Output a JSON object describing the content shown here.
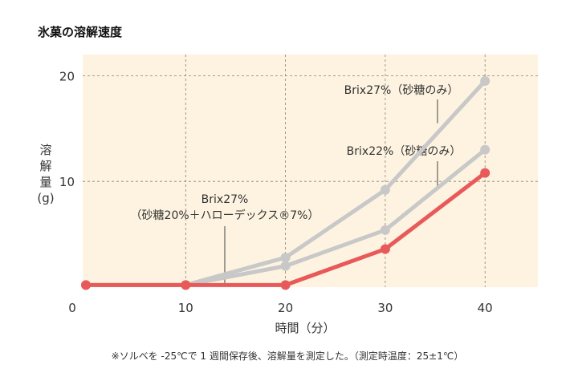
{
  "chart_data": {
    "type": "line",
    "title": "氷菓の溶解速度",
    "xlabel": "時間（分）",
    "ylabel": [
      "溶",
      "解",
      "量",
      "(g)"
    ],
    "xlim": [
      0,
      45.5
    ],
    "ylim": [
      0,
      22
    ],
    "xticks": [
      0,
      10,
      20,
      30,
      40
    ],
    "xtick_labels": [
      "0",
      "10",
      "20",
      "30",
      "40"
    ],
    "yticks": [
      10,
      20
    ],
    "ytick_labels": [
      "10",
      "20"
    ],
    "grid": true,
    "x": [
      0,
      10,
      20,
      30,
      40
    ],
    "series": [
      {
        "name": "Brix27%（砂糖のみ）",
        "values": [
          0.2,
          0.2,
          2.8,
          9.2,
          19.5
        ],
        "color": "#c8c8c8"
      },
      {
        "name": "Brix22%（砂糖のみ）",
        "values": [
          0.2,
          0.2,
          2.0,
          5.4,
          13.0
        ],
        "color": "#c8c8c8"
      },
      {
        "name": "Brix27%（砂糖20%＋ハローデックス®7%）",
        "values": [
          0.2,
          0.2,
          0.2,
          3.6,
          10.8
        ],
        "color": "#e85a5a"
      }
    ],
    "annotations": [
      {
        "lines": [
          "Brix27%（砂糖のみ）"
        ],
        "points_to": [
          35,
          15.5
        ]
      },
      {
        "lines": [
          "Brix22%（砂糖のみ）"
        ],
        "points_to": [
          35,
          9.4
        ]
      },
      {
        "lines": [
          "Brix27%",
          "（砂糖20%＋ハローデックス®7%）"
        ],
        "points_to": [
          14,
          0.3
        ]
      }
    ],
    "footnote": "※ソルベを -25℃で 1 週間保存後、溶解量を測定した。（測定時温度：25±1℃）",
    "background_color": "#fdf3e0"
  }
}
